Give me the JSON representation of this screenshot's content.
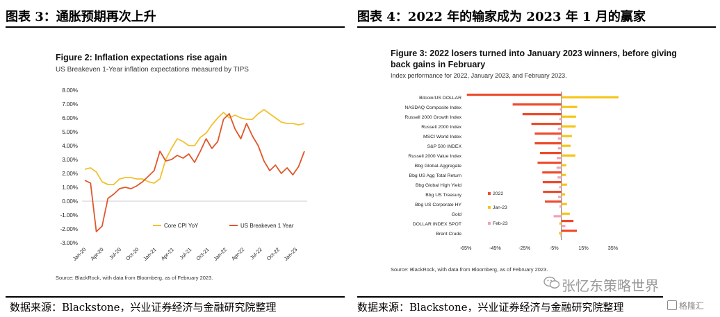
{
  "left": {
    "header": "图表 3：通胀预期再次上升",
    "source": "数据来源：Blackstone，兴业证券经济与金融研究院整理",
    "figure_title": "Figure 2: Inflation expectations rise again",
    "figure_subtitle": "US Breakeven 1-Year inflation expectations measured by TIPS",
    "figure_source": "Source: BlackRock, with data from Bloomberg, as of February 2023."
  },
  "right": {
    "header": "图表 4：2022 年的输家成为 2023 年 1 月的赢家",
    "source": "数据来源：Blackstone，兴业证券经济与金融研究院整理",
    "figure_title_line1": "Figure 3: 2022 losers turned into January 2023 winners, before giving",
    "figure_title_line2": "back gains in February",
    "figure_subtitle": "Index performance for 2022, January 2023, and February 2023.",
    "figure_source": "Source: BlackRock, with data from Bloomberg, as of February 2023."
  },
  "watermark": "张忆东策略世界",
  "badge": "格隆汇",
  "colors": {
    "cpi": "#F2C12E",
    "breakeven": "#E0572A",
    "y2022": "#EE4A2B",
    "jan23": "#F5C518",
    "feb23": "#F2A2B8"
  },
  "chart_data": [
    {
      "type": "line",
      "title": "Figure 2: Inflation expectations rise again",
      "x_ticks": [
        "Jan-20",
        "Apr-20",
        "Jul-20",
        "Oct-20",
        "Jan-21",
        "Apr-21",
        "Jul-21",
        "Oct-21",
        "Jan-22",
        "Apr-22",
        "Jul-22",
        "Oct-22",
        "Jan-23"
      ],
      "y_ticks": [
        "8.00%",
        "7.00%",
        "6.00%",
        "5.00%",
        "4.00%",
        "3.00%",
        "2.00%",
        "1.00%",
        "0.00%",
        "-1.00%",
        "-2.00%",
        "-3.00%"
      ],
      "ylim": [
        -3,
        8
      ],
      "grid": false,
      "legend_position": "bottom",
      "series": [
        {
          "name": "Core CPI YoY",
          "x": [
            0,
            1,
            2,
            3,
            4,
            5,
            6,
            7,
            8,
            9,
            10,
            11,
            12,
            13,
            14,
            15,
            16,
            17,
            18,
            19,
            20,
            21,
            22,
            23,
            24,
            25,
            26,
            27,
            28,
            29,
            30,
            31,
            32,
            33,
            34,
            35,
            36,
            37,
            38
          ],
          "values": [
            2.3,
            2.4,
            2.1,
            1.4,
            1.2,
            1.2,
            1.6,
            1.7,
            1.7,
            1.6,
            1.6,
            1.4,
            1.3,
            1.6,
            3.0,
            3.8,
            4.5,
            4.3,
            4.0,
            4.0,
            4.6,
            4.9,
            5.5,
            6.0,
            6.4,
            6.0,
            6.2,
            6.0,
            5.9,
            5.9,
            6.3,
            6.6,
            6.3,
            6.0,
            5.7,
            5.6,
            5.6,
            5.5,
            5.6
          ]
        },
        {
          "name": "US Breakeven 1 Year",
          "x": [
            0,
            1,
            2,
            3,
            4,
            5,
            6,
            7,
            8,
            9,
            10,
            11,
            12,
            13,
            14,
            15,
            16,
            17,
            18,
            19,
            20,
            21,
            22,
            23,
            24,
            25,
            26,
            27,
            28,
            29,
            30,
            31,
            32,
            33,
            34,
            35,
            36,
            37,
            38
          ],
          "values": [
            1.5,
            1.3,
            -2.2,
            -1.8,
            0.2,
            0.5,
            0.9,
            1.0,
            0.9,
            1.1,
            1.4,
            1.8,
            2.2,
            3.6,
            2.9,
            3.0,
            3.3,
            3.1,
            3.4,
            2.8,
            3.6,
            4.5,
            3.8,
            4.3,
            5.9,
            6.3,
            5.2,
            4.5,
            5.6,
            4.7,
            4.0,
            2.9,
            2.2,
            2.6,
            2.0,
            2.4,
            1.9,
            2.5,
            3.6
          ]
        }
      ]
    },
    {
      "type": "bar",
      "orientation": "horizontal",
      "title": "Figure 3: 2022 losers turned into January 2023 winners, before giving back gains in February",
      "categories": [
        "Bitcoin/US DOLLAR",
        "NASDAQ Composite Index",
        "Russell 2000 Growth Index",
        "Russell 2000 Index",
        "MSCI World Index",
        "S&P 500 INDEX",
        "Russell 2000 Value Index",
        "Bbg Global-Aggregate",
        "Bbg US Agg Total Return",
        "Bbg Global High Yield",
        "Bbg US Treasury",
        "Bbg US Corporate HY",
        "Gold",
        "DOLLAR INDEX SPOT",
        "Brent Crude"
      ],
      "x_ticks": [
        "-65%",
        "-45%",
        "-25%",
        "-5%",
        "15%",
        "35%"
      ],
      "xlim": [
        -65,
        35
      ],
      "legend_position": "inside-left",
      "series": [
        {
          "name": "2022",
          "values": [
            -64.2,
            -33.1,
            -26.4,
            -20.4,
            -18.1,
            -18.1,
            -14.5,
            -16.2,
            -13.0,
            -12.7,
            -12.5,
            -11.2,
            -0.3,
            8.2,
            10.5
          ]
        },
        {
          "name": "Jan-23",
          "values": [
            39.8,
            10.7,
            9.9,
            9.7,
            7.1,
            6.3,
            9.5,
            3.3,
            3.1,
            3.8,
            2.5,
            3.8,
            5.7,
            -1.4,
            -1.7
          ]
        },
        {
          "name": "Feb-23",
          "values": [
            0.0,
            -1.1,
            -1.4,
            -2.4,
            -2.4,
            -2.4,
            -3.1,
            -3.3,
            -2.6,
            -1.5,
            -2.3,
            -1.3,
            -5.3,
            2.7,
            -0.7
          ]
        }
      ]
    }
  ]
}
